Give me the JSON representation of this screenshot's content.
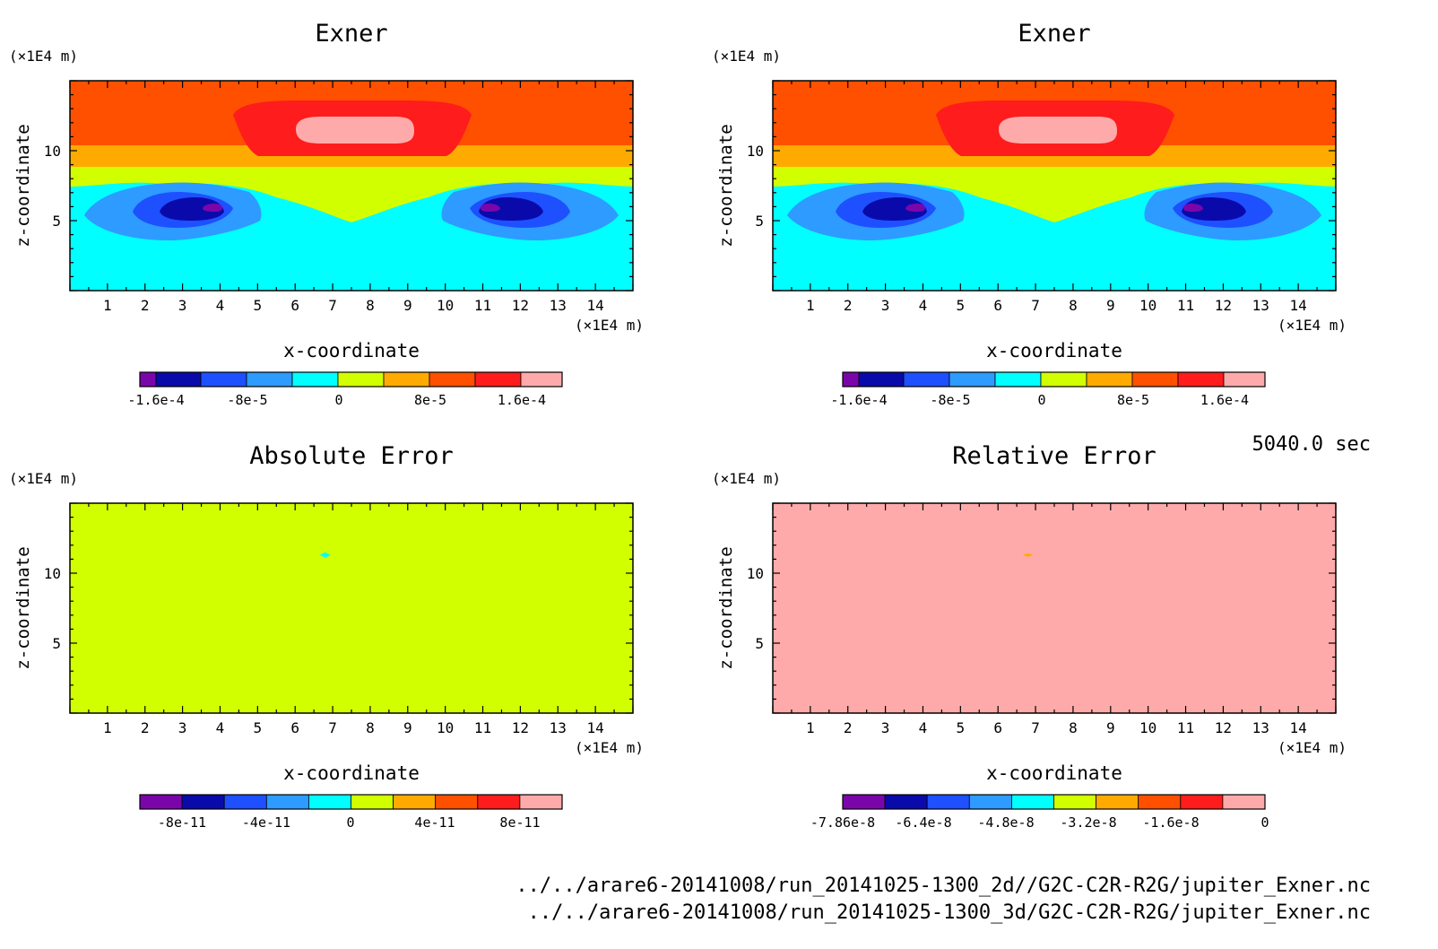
{
  "colors": {
    "levels": [
      "#7a06aa",
      "#0a0aaa",
      "#1e50ff",
      "#2d9bff",
      "#00ffff",
      "#d2ff00",
      "#ffaa00",
      "#ff5000",
      "#ff1c1c",
      "#ffaaaa"
    ]
  },
  "time_label": "5040.0 sec",
  "footer": {
    "line1": "../../arare6-20141008/run_20141025-1300_2d//G2C-C2R-R2G/jupiter_Exner.nc",
    "line2": "../../arare6-20141008/run_20141025-1300_3d/G2C-C2R-R2G/jupiter_Exner.nc"
  },
  "chart_data": [
    {
      "type": "heatmap",
      "title": "Exner",
      "xlabel": "x-coordinate",
      "ylabel": "z-coordinate",
      "x_unit": "(×1E4 m)",
      "y_unit": "(×1E4 m)",
      "xlim": [
        0,
        15
      ],
      "ylim": [
        0,
        15
      ],
      "x_ticks": [
        1,
        2,
        3,
        4,
        5,
        6,
        7,
        8,
        9,
        10,
        11,
        12,
        13,
        14
      ],
      "y_ticks": [
        5,
        10
      ],
      "colorbar": {
        "levels": 10,
        "labels": [
          "-1.6e-4",
          "-8e-5",
          "0",
          "8e-5",
          "1.6e-4"
        ]
      }
    },
    {
      "type": "heatmap",
      "title": "Exner",
      "xlabel": "x-coordinate",
      "ylabel": "z-coordinate",
      "x_unit": "(×1E4 m)",
      "y_unit": "(×1E4 m)",
      "xlim": [
        0,
        15
      ],
      "ylim": [
        0,
        15
      ],
      "x_ticks": [
        1,
        2,
        3,
        4,
        5,
        6,
        7,
        8,
        9,
        10,
        11,
        12,
        13,
        14
      ],
      "y_ticks": [
        5,
        10
      ],
      "colorbar": {
        "levels": 10,
        "labels": [
          "-1.6e-4",
          "-8e-5",
          "0",
          "8e-5",
          "1.6e-4"
        ]
      }
    },
    {
      "type": "heatmap",
      "title": "Absolute Error",
      "xlabel": "x-coordinate",
      "ylabel": "z-coordinate",
      "x_unit": "(×1E4 m)",
      "y_unit": "(×1E4 m)",
      "xlim": [
        0,
        15
      ],
      "ylim": [
        0,
        15
      ],
      "x_ticks": [
        1,
        2,
        3,
        4,
        5,
        6,
        7,
        8,
        9,
        10,
        11,
        12,
        13,
        14
      ],
      "y_ticks": [
        5,
        10
      ],
      "fill_level": 5,
      "colorbar": {
        "levels": 10,
        "labels": [
          "-8e-11",
          "-4e-11",
          "0",
          "4e-11",
          "8e-11"
        ]
      }
    },
    {
      "type": "heatmap",
      "title": "Relative Error",
      "xlabel": "x-coordinate",
      "ylabel": "z-coordinate",
      "x_unit": "(×1E4 m)",
      "y_unit": "(×1E4 m)",
      "xlim": [
        0,
        15
      ],
      "ylim": [
        0,
        15
      ],
      "x_ticks": [
        1,
        2,
        3,
        4,
        5,
        6,
        7,
        8,
        9,
        10,
        11,
        12,
        13,
        14
      ],
      "y_ticks": [
        5,
        10
      ],
      "fill_level": 9,
      "colorbar": {
        "levels": 10,
        "labels": [
          "-7.86e-8",
          "-6.4e-8",
          "-4.8e-8",
          "-3.2e-8",
          "-1.6e-8",
          "0"
        ]
      }
    }
  ]
}
